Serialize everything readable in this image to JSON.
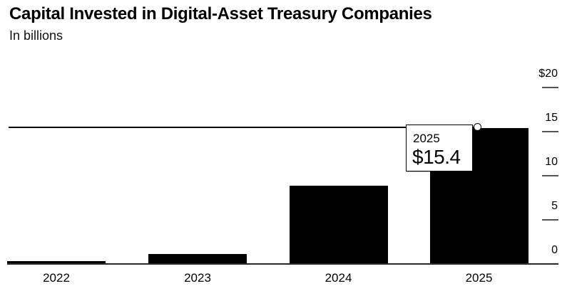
{
  "header": {
    "title": "Capital Invested in Digital-Asset Treasury Companies",
    "subtitle": "In billions"
  },
  "chart_data": {
    "type": "bar",
    "title": "Capital Invested in Digital-Asset Treasury Companies",
    "subtitle": "In billions",
    "categories": [
      "2022",
      "2023",
      "2024",
      "2025"
    ],
    "values": [
      0.3,
      1.1,
      8.9,
      15.4
    ],
    "xlabel": "",
    "ylabel": "In billions",
    "ylim": [
      0,
      20
    ],
    "grid": false,
    "legend": false,
    "y_axis_position": "right",
    "y_ticks": [
      {
        "label": "$20",
        "value": 20
      },
      {
        "label": "15",
        "value": 15
      },
      {
        "label": "10",
        "value": 10
      },
      {
        "label": "5",
        "value": 5
      },
      {
        "label": "0",
        "value": 0
      }
    ],
    "annotation": {
      "category": "2025",
      "value": 15.4,
      "reference_line": true,
      "marker": "open-circle"
    }
  },
  "tooltip": {
    "label": "2025",
    "value": "$15.4"
  },
  "colors": {
    "bar": "#000000",
    "background": "#ffffff",
    "axis_tick": "#555555",
    "baseline": "#2a2a2a",
    "reference_line": "#000000",
    "text": "#000000"
  }
}
